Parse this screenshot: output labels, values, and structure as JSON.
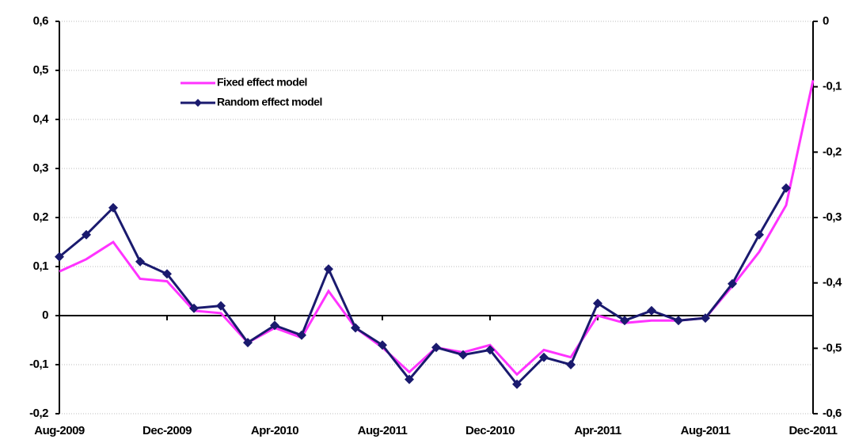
{
  "chart_data": {
    "type": "line",
    "categories": [
      "Aug-2009",
      null,
      null,
      null,
      "Dec-2009",
      null,
      null,
      null,
      "Apr-2010",
      null,
      null,
      null,
      "Aug-2011",
      null,
      null,
      null,
      "Dec-2010",
      null,
      null,
      null,
      "Apr-2011",
      null,
      null,
      null,
      "Aug-2011",
      null,
      null,
      null,
      "Dec-2011"
    ],
    "series": [
      {
        "name": "Fixed effect model",
        "color": "#ff33ff",
        "values": [
          0.09,
          0.115,
          0.15,
          0.075,
          0.07,
          0.01,
          0.005,
          -0.055,
          -0.025,
          -0.045,
          0.05,
          -0.025,
          -0.065,
          -0.115,
          -0.065,
          -0.075,
          -0.06,
          -0.12,
          -0.07,
          -0.085,
          0,
          -0.015,
          -0.01,
          -0.01,
          -0.005,
          0.06,
          0.13,
          0.225,
          0.48
        ]
      },
      {
        "name": "Random effect model",
        "color": "#1a1a6e",
        "values": [
          0.12,
          0.165,
          0.22,
          0.11,
          0.085,
          0.015,
          0.02,
          -0.055,
          -0.02,
          -0.04,
          0.095,
          -0.025,
          -0.06,
          -0.13,
          -0.065,
          -0.08,
          -0.07,
          -0.14,
          -0.085,
          -0.1,
          0.025,
          -0.01,
          0.01,
          -0.01,
          -0.005,
          0.065,
          0.165,
          0.26,
          null
        ]
      }
    ],
    "ylim": [
      -0.2,
      0.6
    ],
    "yticks": [
      {
        "value": -0.2,
        "label": "-0,2"
      },
      {
        "value": -0.1,
        "label": "-0,1"
      },
      0,
      {
        "value": 0.1,
        "label": "0,1"
      },
      {
        "value": 0.2,
        "label": "0,2"
      },
      {
        "value": 0.3,
        "label": "0,3"
      },
      {
        "value": 0.4,
        "label": "0,4"
      },
      {
        "value": 0.5,
        "label": "0,5"
      },
      {
        "value": 0.6,
        "label": "0,6"
      }
    ],
    "y2lim": [
      -0.6,
      0
    ],
    "y2ticks": [
      {
        "value": -0.6,
        "label": "-0,6"
      },
      {
        "value": -0.5,
        "label": "-0,5"
      },
      {
        "value": -0.4,
        "label": "-0,4"
      },
      {
        "value": -0.3,
        "label": "-0,3"
      },
      {
        "value": -0.2,
        "label": "-0,2"
      },
      {
        "value": -0.1,
        "label": "-0,1"
      },
      0
    ],
    "grid": true
  }
}
